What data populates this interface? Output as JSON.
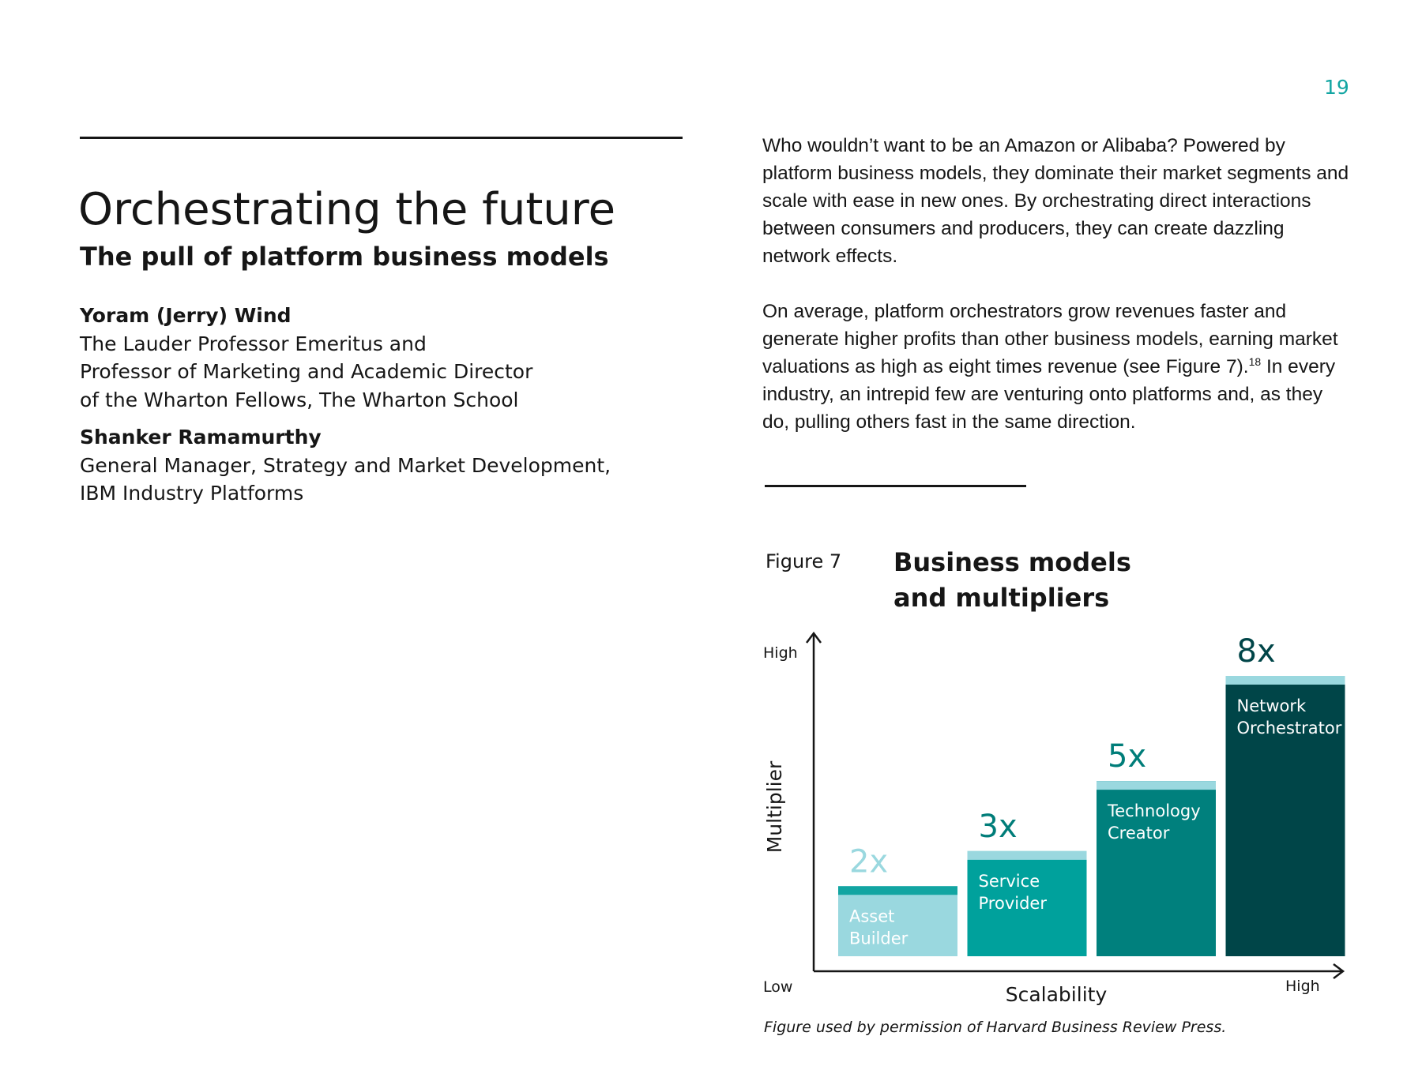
{
  "page_number": "19",
  "left": {
    "title": "Orchestrating the future",
    "subtitle": "The pull of platform business models",
    "authors": [
      {
        "name": "Yoram (Jerry) Wind",
        "lines": [
          "The Lauder Professor Emeritus and",
          "Professor of Marketing and Academic Director",
          "of the Wharton Fellows, The Wharton School"
        ]
      },
      {
        "name": "Shanker Ramamurthy",
        "lines": [
          "General Manager, Strategy and Market Development,",
          "IBM Industry Platforms"
        ]
      }
    ]
  },
  "body": {
    "paragraph_1": "Who wouldn’t want to be an Amazon or Alibaba? Powered by platform business models, they dominate their market segments and scale with ease in new ones. By orchestrating direct interactions between consumers and producers, they can create dazzling network effects.",
    "paragraph_2_before": "On average, platform orchestrators grow revenues faster and generate higher profits than other business models, earning market valuations as high as eight times revenue (see Figure 7).",
    "paragraph_2_footnote": "18",
    "paragraph_2_after": " In every industry, an intrepid few are venturing onto platforms and, as they do, pulling others fast in the same direction."
  },
  "figure": {
    "label": "Figure 7",
    "title_line_1": "Business models",
    "title_line_2": "and multipliers",
    "caption": "Figure used by permission of Harvard Business Review Press."
  },
  "chart_data": {
    "type": "bar",
    "title": "Business models and multipliers",
    "xlabel": "Scalability",
    "ylabel": "Multiplier",
    "x_axis_low": "Low",
    "x_axis_high": "High",
    "y_axis_high": "High",
    "categories": [
      [
        "Asset",
        "Builder"
      ],
      [
        "Service",
        "Provider"
      ],
      [
        "Technology",
        "Creator"
      ],
      [
        "Network",
        "Orchestrator"
      ]
    ],
    "values": [
      2,
      3,
      5,
      8
    ],
    "value_labels": [
      "2x",
      "3x",
      "5x",
      "8x"
    ],
    "colors": [
      {
        "bar": "#9ad8df",
        "cap": "#12a5a2",
        "label": "#9ad8df",
        "text": "#ffffff"
      },
      {
        "bar": "#00a19c",
        "cap": "#9ad8df",
        "label": "#007d79",
        "text": "#ffffff"
      },
      {
        "bar": "#00807d",
        "cap": "#9ad8df",
        "label": "#007d79",
        "text": "#ffffff"
      },
      {
        "bar": "#004548",
        "cap": "#9ad8df",
        "label": "#004548",
        "text": "#ffffff"
      }
    ],
    "grid": false,
    "legend": "none"
  }
}
